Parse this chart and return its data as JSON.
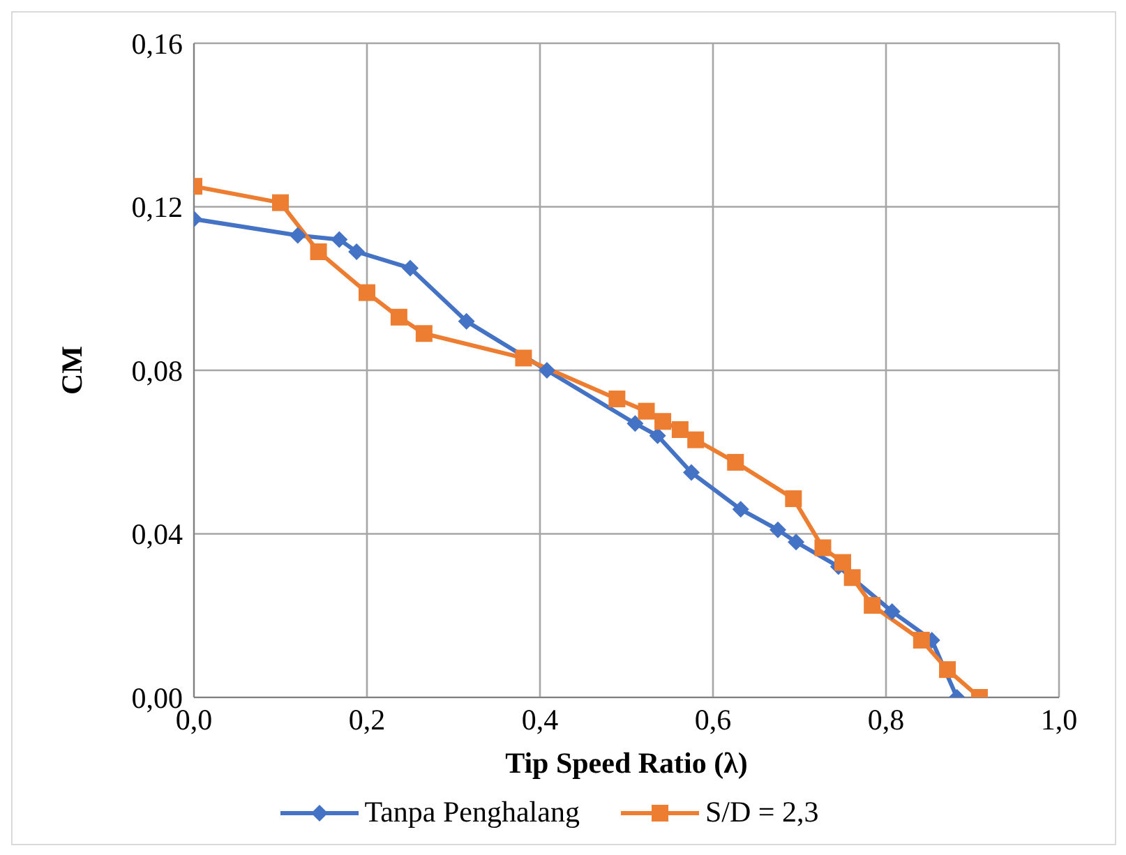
{
  "chart_data": {
    "type": "line",
    "xlabel": "Tip Speed Ratio (λ)",
    "ylabel": "CM",
    "xlim": [
      0,
      1
    ],
    "ylim": [
      0,
      0.16
    ],
    "xticks": [
      {
        "value": 0,
        "label": "0,0"
      },
      {
        "value": 0.2,
        "label": "0,2"
      },
      {
        "value": 0.4,
        "label": "0,4"
      },
      {
        "value": 0.6,
        "label": "0,6"
      },
      {
        "value": 0.8,
        "label": "0,8"
      },
      {
        "value": 1,
        "label": "1,0"
      }
    ],
    "yticks": [
      {
        "value": 0,
        "label": "0,00"
      },
      {
        "value": 0.04,
        "label": "0,04"
      },
      {
        "value": 0.08,
        "label": "0,08"
      },
      {
        "value": 0.12,
        "label": "0,12"
      },
      {
        "value": 0.16,
        "label": "0,16"
      }
    ],
    "grid": true,
    "legend": "bottom",
    "line_style": "solid",
    "series": [
      {
        "name": "Tanpa Penghalang",
        "color": "#4472c4",
        "marker": "diamond",
        "x": [
          0,
          0.12,
          0.168,
          0.188,
          0.25,
          0.315,
          0.408,
          0.51,
          0.536,
          0.575,
          0.632,
          0.675,
          0.696,
          0.745,
          0.807,
          0.853,
          0.882
        ],
        "values": [
          0.117,
          0.113,
          0.112,
          0.109,
          0.105,
          0.092,
          0.08,
          0.067,
          0.064,
          0.055,
          0.046,
          0.041,
          0.038,
          0.032,
          0.021,
          0.014,
          0
        ]
      },
      {
        "name": "S/D = 2,3",
        "color": "#ed7d31",
        "marker": "square",
        "x": [
          0,
          0.1,
          0.144,
          0.2,
          0.237,
          0.266,
          0.381,
          0.489,
          0.523,
          0.542,
          0.562,
          0.58,
          0.626,
          0.693,
          0.727,
          0.75,
          0.761,
          0.784,
          0.841,
          0.871,
          0.908
        ],
        "values": [
          0.125,
          0.121,
          0.109,
          0.099,
          0.093,
          0.089,
          0.083,
          0.073,
          0.07,
          0.0675,
          0.0655,
          0.063,
          0.0575,
          0.0486,
          0.0366,
          0.033,
          0.0293,
          0.0225,
          0.014,
          0.0068,
          0
        ]
      }
    ]
  }
}
